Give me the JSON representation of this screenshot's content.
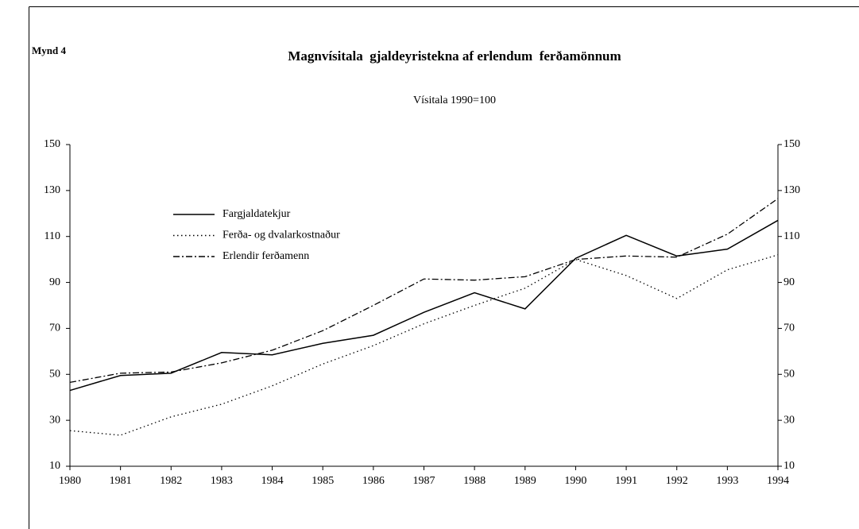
{
  "chart_data": {
    "type": "line",
    "label": "Mynd 4",
    "title": "Magnvísitala  gjaldeyristekna af erlendum  ferðamönnum",
    "subtitle": "Vísitala 1990=100",
    "x": [
      1980,
      1981,
      1982,
      1983,
      1984,
      1985,
      1986,
      1987,
      1988,
      1989,
      1990,
      1991,
      1992,
      1993,
      1994
    ],
    "xlim": [
      1980,
      1994
    ],
    "xticks": [
      1980,
      1981,
      1982,
      1983,
      1984,
      1985,
      1986,
      1987,
      1988,
      1989,
      1990,
      1991,
      1992,
      1993,
      1994
    ],
    "ylim": [
      10,
      150
    ],
    "yticks": [
      10,
      30,
      50,
      70,
      90,
      110,
      130,
      150
    ],
    "y2lim": [
      10,
      150
    ],
    "y2ticks": [
      10,
      30,
      50,
      70,
      90,
      110,
      130,
      150
    ],
    "grid": false,
    "legend": "upper left",
    "series": [
      {
        "name": "Fargjaldatekjur",
        "color": "#000000",
        "dash": "solid",
        "values": [
          43,
          49.5,
          50.5,
          59.5,
          58.5,
          63.5,
          67,
          77,
          85.5,
          78.5,
          100.5,
          110.5,
          101.5,
          104.5,
          117
        ]
      },
      {
        "name": "Ferða- og dvalarkostnaður",
        "color": "#000000",
        "dash": "dotted",
        "values": [
          25.5,
          23.5,
          31.5,
          37,
          45,
          54.5,
          62.5,
          72,
          80,
          87.5,
          100,
          93,
          83,
          95.5,
          102
        ]
      },
      {
        "name": "Erlendir ferðamenn",
        "color": "#000000",
        "dash": "dashdot",
        "values": [
          46.5,
          50.5,
          51,
          55,
          60.5,
          69,
          80,
          91.5,
          91,
          92.5,
          100,
          101.5,
          101,
          111,
          126.5
        ]
      }
    ]
  }
}
